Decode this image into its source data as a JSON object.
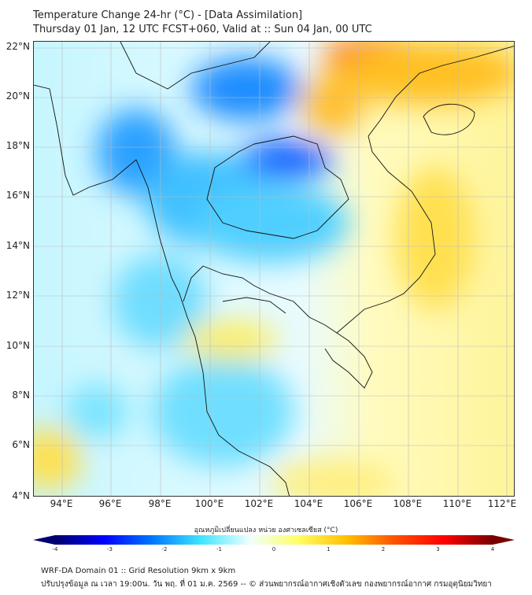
{
  "header": {
    "title": "Temperature Change 24-hr (°C) - [Data Assimilation]",
    "subtitle": "Thursday 01 Jan, 12 UTC FCST+060, Valid at :: Sun 04 Jan, 00 UTC"
  },
  "map": {
    "lat_labels": [
      "22°N",
      "20°N",
      "18°N",
      "16°N",
      "14°N",
      "12°N",
      "10°N",
      "8°N",
      "6°N",
      "4°N"
    ],
    "lon_labels": [
      "94°E",
      "96°E",
      "98°E",
      "100°E",
      "102°E",
      "104°E",
      "106°E",
      "108°E",
      "110°E",
      "112°E"
    ]
  },
  "colorbar": {
    "title": "อุณหภูมิเปลี่ยนแปลง หน่วย องศาเซลเซียส (°C)",
    "ticks": [
      "-4",
      "-3",
      "-2",
      "-1",
      "0",
      "1",
      "2",
      "3",
      "4"
    ],
    "range": [
      -4,
      4
    ],
    "colors": [
      "#00006e",
      "#0000ff",
      "#0078ff",
      "#3ee6ff",
      "#f0ffff",
      "#ffff66",
      "#ffc000",
      "#ff5000",
      "#ff0000",
      "#7a0000"
    ]
  },
  "footer": {
    "line1": "WRF-DA Domain 01 :: Grid Resolution 9km x 9km",
    "line2": "ปรับปรุงข้อมูล ณ เวลา 19:00น. วัน พฤ. ที่ 01 ม.ค. 2569 -- © ส่วนพยากรณ์อากาศเชิงตัวเลข กองพยากรณ์อากาศ กรมอุตุนิยมวิทยา"
  }
}
